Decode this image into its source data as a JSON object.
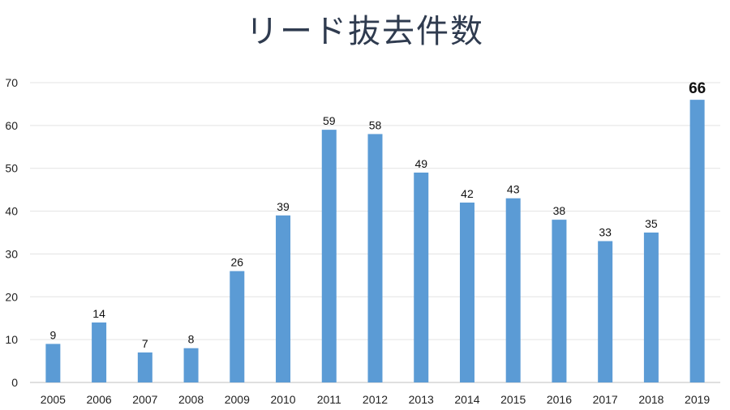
{
  "chart_data": {
    "type": "bar",
    "title": "リード抜去件数",
    "categories": [
      "2005",
      "2006",
      "2007",
      "2008",
      "2009",
      "2010",
      "2011",
      "2012",
      "2013",
      "2014",
      "2015",
      "2016",
      "2017",
      "2018",
      "2019"
    ],
    "values": [
      9,
      14,
      7,
      8,
      26,
      39,
      59,
      58,
      49,
      42,
      43,
      38,
      33,
      35,
      66
    ],
    "ylim": [
      0,
      70
    ],
    "yticks": [
      0,
      10,
      20,
      30,
      40,
      50,
      60,
      70
    ],
    "grid": true,
    "bar_color": "#5b9bd5",
    "highlight": {
      "category": "2019",
      "label_color": "#e00000"
    }
  }
}
